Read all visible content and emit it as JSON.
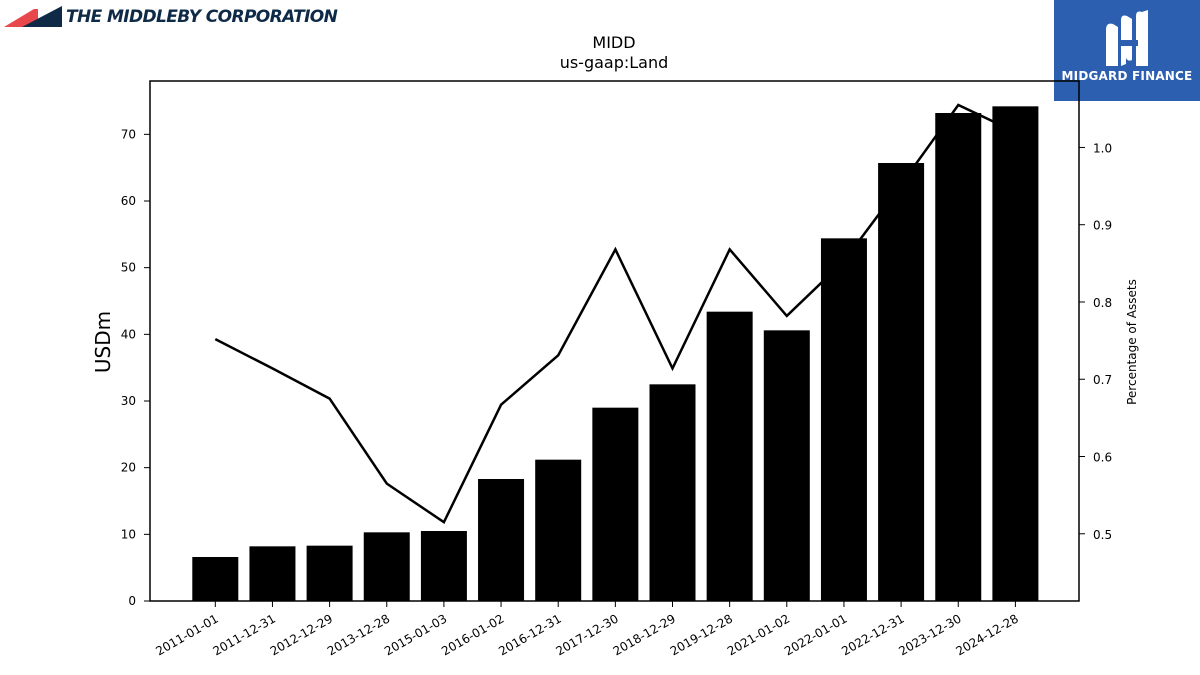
{
  "header": {
    "company_name": "THE MIDDLEBY CORPORATION",
    "company_logo_icon": "middleby-roof-icon",
    "brand_name": "MIDGARD FINANCE",
    "brand_logo_icon": "midgard-m-icon",
    "brand_color": "#2d5fb0",
    "company_color": "#0e2a47",
    "company_accent": "#e8474c"
  },
  "chart_data": {
    "type": "bar",
    "title": "MIDD",
    "subtitle": "us-gaap:Land",
    "ylabel": "USDm",
    "ylabel_right": "Percentage of Assets",
    "xlabel": "",
    "ylim": [
      0,
      78
    ],
    "y2lim": [
      0.413,
      1.086
    ],
    "yticks": [
      0,
      10,
      20,
      30,
      40,
      50,
      60,
      70
    ],
    "y2ticks": [
      0.5,
      0.6,
      0.7,
      0.8,
      0.9,
      1.0
    ],
    "categories": [
      "2011-01-01",
      "2011-12-31",
      "2012-12-29",
      "2013-12-28",
      "2015-01-03",
      "2016-01-02",
      "2016-12-31",
      "2017-12-30",
      "2018-12-29",
      "2019-12-28",
      "2021-01-02",
      "2022-01-01",
      "2022-12-31",
      "2023-12-30",
      "2024-12-28"
    ],
    "series": [
      {
        "axis": "left",
        "kind": "bar",
        "color": "#000000",
        "values": [
          6.6,
          8.2,
          8.3,
          10.3,
          10.5,
          18.3,
          21.2,
          29.0,
          32.5,
          43.4,
          40.6,
          54.4,
          65.7,
          73.2,
          74.2
        ]
      },
      {
        "axis": "right",
        "kind": "line",
        "color": "#000000",
        "values": [
          0.752,
          0.714,
          0.675,
          0.565,
          0.515,
          0.667,
          0.731,
          0.868,
          0.714,
          0.868,
          0.782,
          0.853,
          0.952,
          1.055,
          1.02
        ]
      }
    ],
    "grid": false,
    "legend": "none"
  }
}
